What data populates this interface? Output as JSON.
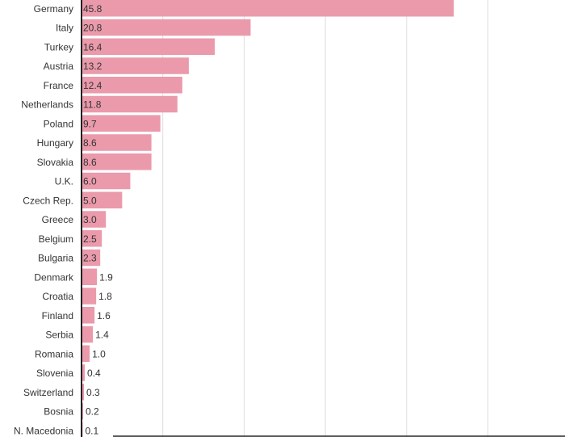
{
  "chart_data": {
    "type": "bar",
    "orientation": "horizontal",
    "categories": [
      "Germany",
      "Italy",
      "Turkey",
      "Austria",
      "France",
      "Netherlands",
      "Poland",
      "Hungary",
      "Slovakia",
      "U.K.",
      "Czech Rep.",
      "Greece",
      "Belgium",
      "Bulgaria",
      "Denmark",
      "Croatia",
      "Finland",
      "Serbia",
      "Romania",
      "Slovenia",
      "Switzerland",
      "Bosnia",
      "N. Macedonia"
    ],
    "values": [
      45.8,
      20.8,
      16.4,
      13.2,
      12.4,
      11.8,
      9.7,
      8.6,
      8.6,
      6.0,
      5.0,
      3.0,
      2.5,
      2.3,
      1.9,
      1.8,
      1.6,
      1.4,
      1.0,
      0.4,
      0.3,
      0.2,
      0.1
    ],
    "value_labels": [
      "45.8",
      "20.8",
      "16.4",
      "13.2",
      "12.4",
      "11.8",
      "9.7",
      "8.6",
      "8.6",
      "6.0",
      "5.0",
      "3.0",
      "2.5",
      "2.3",
      "1.9",
      "1.8",
      "1.6",
      "1.4",
      "1.0",
      "0.4",
      "0.3",
      "0.2",
      "0.1"
    ],
    "title": "",
    "xlabel": "",
    "ylabel": "",
    "xlim": [
      0,
      60
    ],
    "grid": true,
    "bar_color": "#ea9aab",
    "grid_color": "#dddddd",
    "axis_color": "#222222"
  }
}
